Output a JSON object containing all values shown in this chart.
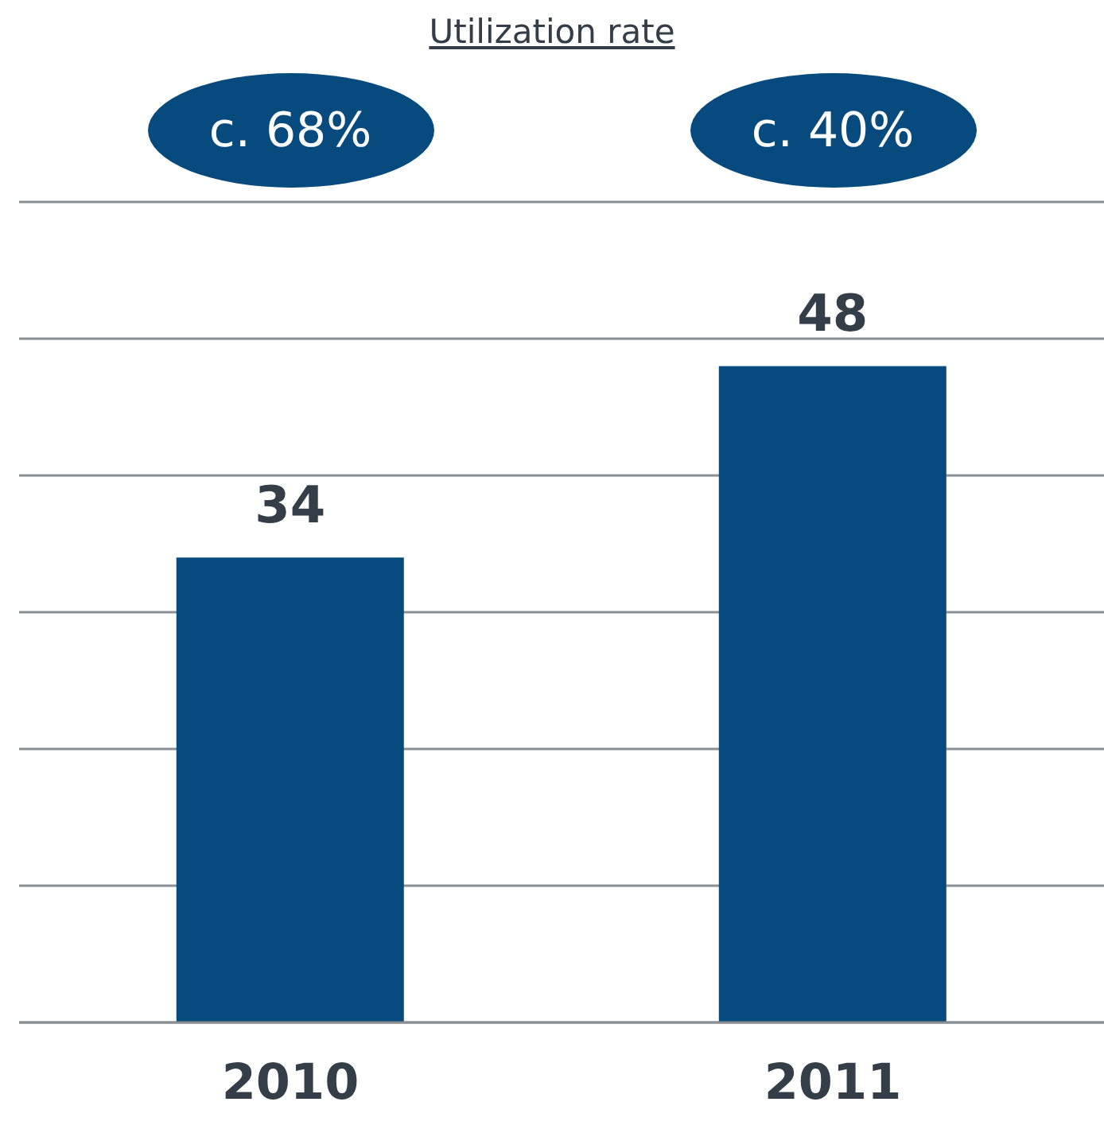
{
  "chart_data": {
    "type": "bar",
    "title": "Utilization rate",
    "categories": [
      "2010",
      "2011"
    ],
    "values": [
      34,
      48
    ],
    "color": "#064a7e",
    "data_labels": true,
    "ylim": [
      0,
      60
    ],
    "yticks": [
      {
        "value": 0,
        "label": null
      },
      {
        "value": 10,
        "label": null
      },
      {
        "value": 20,
        "label": null
      },
      {
        "value": 30,
        "label": null
      },
      {
        "value": 40,
        "label": null
      },
      {
        "value": 50,
        "label": null
      },
      {
        "value": 60,
        "label": null
      }
    ],
    "grid": "y",
    "tick_labels": "x",
    "annotations": [
      "c. 68%",
      "c. 40%"
    ]
  }
}
